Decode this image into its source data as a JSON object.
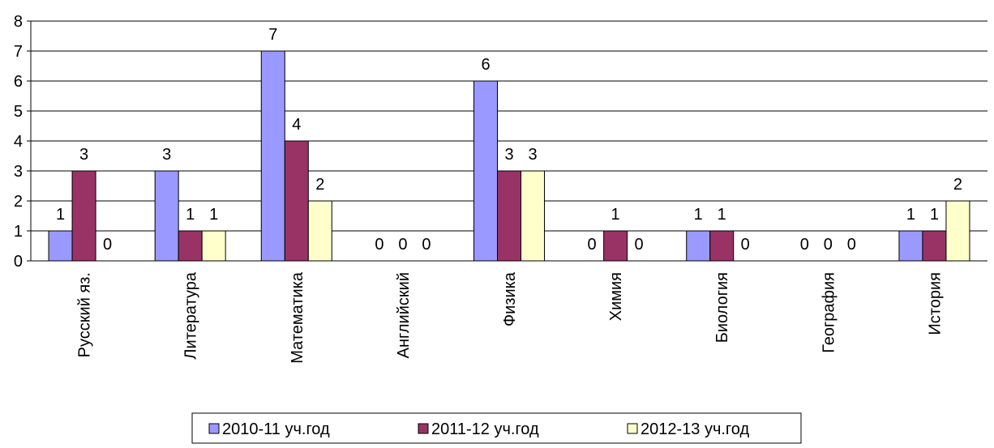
{
  "chart_data": {
    "type": "bar",
    "categories": [
      "Русский яз.",
      "Литература",
      "Математика",
      "Английский",
      "Физика",
      "Химия",
      "Биология",
      "География",
      "История"
    ],
    "series": [
      {
        "name": "2010-11 уч.год",
        "color": "#9999ff",
        "values": [
          1,
          3,
          7,
          0,
          6,
          0,
          1,
          0,
          1
        ]
      },
      {
        "name": "2011-12 уч.год",
        "color": "#993366",
        "values": [
          3,
          1,
          4,
          0,
          3,
          1,
          1,
          0,
          1
        ]
      },
      {
        "name": "2012-13 уч.год",
        "color": "#ffffcc",
        "values": [
          0,
          1,
          2,
          0,
          3,
          0,
          0,
          0,
          2
        ]
      }
    ],
    "ylim": [
      0,
      8
    ],
    "yticks": [
      0,
      1,
      2,
      3,
      4,
      5,
      6,
      7,
      8
    ],
    "grid": true,
    "legend": "bottom"
  }
}
